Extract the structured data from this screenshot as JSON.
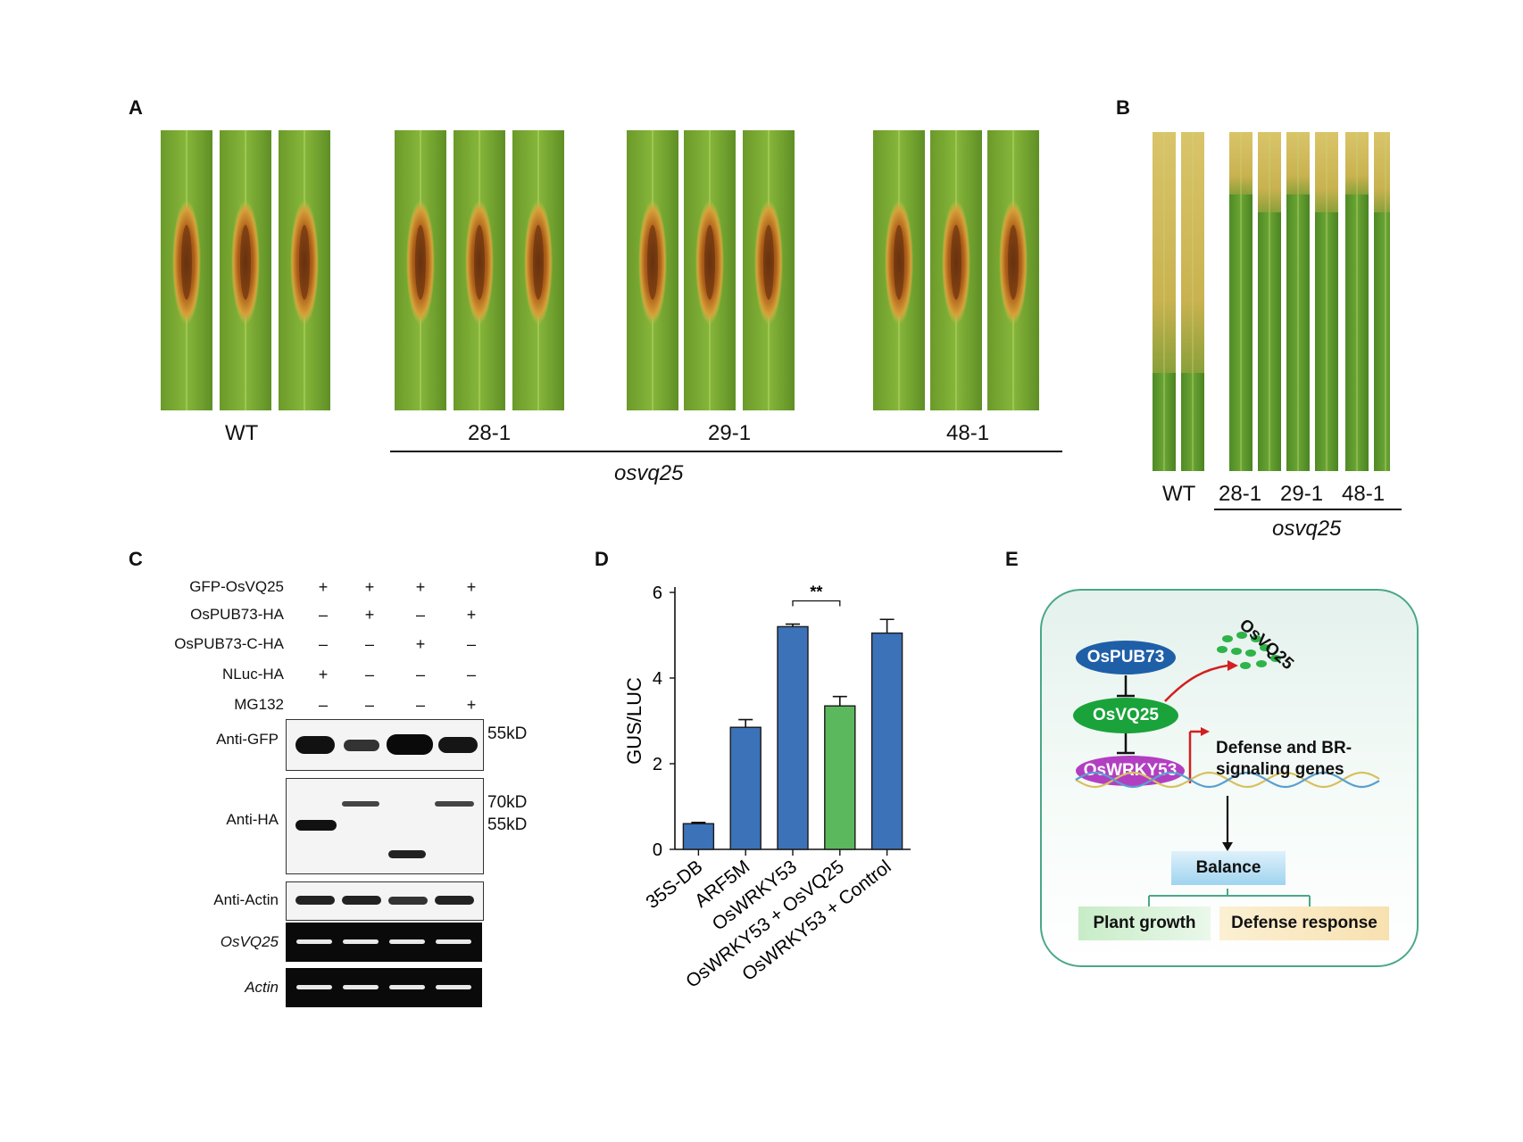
{
  "panels": {
    "a": "A",
    "b": "B",
    "c": "C",
    "d": "D",
    "e": "E"
  },
  "panelA": {
    "groups": [
      "WT",
      "28-1",
      "29-1",
      "48-1"
    ],
    "genotype": "osvq25"
  },
  "panelB": {
    "groups": [
      "WT",
      "28-1",
      "29-1",
      "48-1"
    ],
    "genotype": "osvq25"
  },
  "panelC": {
    "conditions": [
      {
        "label": "GFP-OsVQ25",
        "signs": [
          "+",
          "+",
          "+",
          "+"
        ]
      },
      {
        "label": "OsPUB73-HA",
        "signs": [
          "–",
          "+",
          "–",
          "+"
        ]
      },
      {
        "label": "OsPUB73-C-HA",
        "signs": [
          "–",
          "–",
          "+",
          "–"
        ]
      },
      {
        "label": "NLuc-HA",
        "signs": [
          "+",
          "–",
          "–",
          "–"
        ]
      },
      {
        "label": "MG132",
        "signs": [
          "–",
          "–",
          "–",
          "+"
        ]
      }
    ],
    "blots": {
      "gfp": "Anti-GFP",
      "ha": "Anti-HA",
      "actin": "Anti-Actin",
      "osvq25": "OsVQ25",
      "actin_gel": "Actin"
    },
    "markers": {
      "gfp_55": "55kD",
      "ha_70": "70kD",
      "ha_55": "55kD"
    }
  },
  "chart_data": {
    "type": "bar",
    "categories": [
      "35S-DB",
      "ARF5M",
      "OsWRKY53",
      "OsWRKY53 + OsVQ25",
      "OsWRKY53 + Control"
    ],
    "values": [
      0.6,
      2.85,
      5.2,
      3.35,
      5.05
    ],
    "errors": [
      0.03,
      0.18,
      0.06,
      0.22,
      0.32
    ],
    "colors": [
      "#3b72b8",
      "#3b72b8",
      "#3b72b8",
      "#5cb85c",
      "#3b72b8"
    ],
    "ylabel": "GUS/LUC",
    "ylim": [
      0,
      6
    ],
    "yticks": [
      0,
      2,
      4,
      6
    ],
    "significance": {
      "between": [
        2,
        3
      ],
      "label": "**"
    }
  },
  "panelE": {
    "pub73": "OsPUB73",
    "vq25": "OsVQ25",
    "wrky53": "OsWRKY53",
    "vq25_degraded": "OsVQ25",
    "genes_line1": "Defense and BR-",
    "genes_line2": "signaling genes",
    "balance": "Balance",
    "growth": "Plant growth",
    "defense": "Defense response",
    "colors": {
      "pub73": "#1f5fa8",
      "vq25": "#1aa33a",
      "wrky53": "#b23fc2",
      "arrow": "#d21f1f"
    }
  }
}
